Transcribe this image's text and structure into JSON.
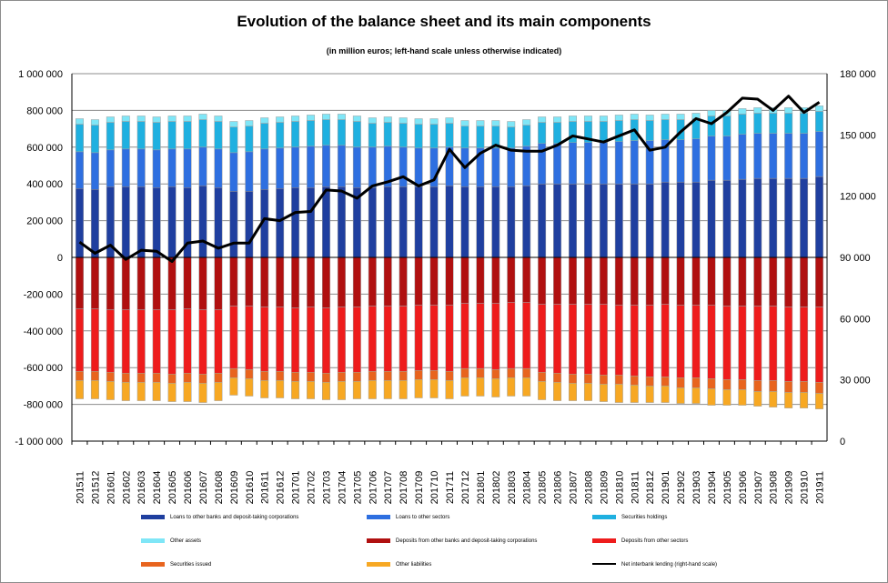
{
  "chart_data": {
    "type": "bar",
    "title": "Evolution of the balance sheet and its main components",
    "subtitle": "(in million euros; left-hand scale unless otherwise indicated)",
    "categories": [
      "201511",
      "201512",
      "201601",
      "201602",
      "201603",
      "201604",
      "201605",
      "201606",
      "201607",
      "201608",
      "201609",
      "201610",
      "201611",
      "201612",
      "201701",
      "201702",
      "201703",
      "201704",
      "201705",
      "201706",
      "201707",
      "201708",
      "201709",
      "201710",
      "201711",
      "201712",
      "201801",
      "201802",
      "201803",
      "201804",
      "201805",
      "201806",
      "201807",
      "201808",
      "201809",
      "201810",
      "201811",
      "201812",
      "201901",
      "201902",
      "201903",
      "201904",
      "201905",
      "201906",
      "201907",
      "201908",
      "201909",
      "201910",
      "201911"
    ],
    "ylim_left": [
      -1000000,
      1000000
    ],
    "ylim_right": [
      0,
      180000
    ],
    "left_ticks": [
      "-1 000 000",
      "-800 000",
      "-600 000",
      "-400 000",
      "-200 000",
      "0",
      "200 000",
      "400 000",
      "600 000",
      "800 000",
      "1 000 000"
    ],
    "right_ticks": [
      "0",
      "30 000",
      "60 000",
      "90 000",
      "120 000",
      "150 000",
      "180 000"
    ],
    "grid": true,
    "legend_position": "bottom",
    "series": [
      {
        "name": "Loans to other banks and deposit-taking corporations",
        "color": "#1f3f9f",
        "stack": "assets",
        "values": [
          375000,
          370000,
          385000,
          385000,
          385000,
          380000,
          385000,
          380000,
          390000,
          380000,
          360000,
          360000,
          370000,
          375000,
          380000,
          380000,
          385000,
          385000,
          380000,
          380000,
          385000,
          385000,
          385000,
          385000,
          390000,
          385000,
          385000,
          385000,
          385000,
          390000,
          400000,
          400000,
          400000,
          400000,
          400000,
          400000,
          400000,
          400000,
          410000,
          410000,
          410000,
          420000,
          420000,
          425000,
          430000,
          430000,
          430000,
          430000,
          440000
        ]
      },
      {
        "name": "Loans to other sectors",
        "color": "#2e6fe0",
        "stack": "assets",
        "values": [
          200000,
          200000,
          200000,
          205000,
          205000,
          205000,
          205000,
          210000,
          210000,
          210000,
          210000,
          215000,
          220000,
          220000,
          220000,
          225000,
          225000,
          225000,
          220000,
          220000,
          220000,
          215000,
          210000,
          210000,
          210000,
          210000,
          210000,
          210000,
          210000,
          215000,
          220000,
          220000,
          225000,
          225000,
          225000,
          230000,
          235000,
          235000,
          230000,
          230000,
          235000,
          240000,
          240000,
          245000,
          245000,
          245000,
          245000,
          245000,
          245000
        ]
      },
      {
        "name": "Securities holdings",
        "color": "#1fb0e0",
        "stack": "assets",
        "values": [
          150000,
          150000,
          150000,
          150000,
          150000,
          150000,
          150000,
          150000,
          150000,
          150000,
          140000,
          140000,
          140000,
          140000,
          140000,
          140000,
          140000,
          140000,
          140000,
          130000,
          130000,
          130000,
          130000,
          130000,
          130000,
          120000,
          120000,
          120000,
          115000,
          115000,
          115000,
          115000,
          115000,
          115000,
          115000,
          115000,
          115000,
          110000,
          110000,
          110000,
          110000,
          110000,
          110000,
          110000,
          110000,
          110000,
          110000,
          110000,
          110000
        ]
      },
      {
        "name": "Other assets",
        "color": "#7fe6f7",
        "stack": "assets",
        "values": [
          30000,
          30000,
          30000,
          30000,
          30000,
          30000,
          30000,
          30000,
          30000,
          30000,
          30000,
          30000,
          30000,
          30000,
          30000,
          30000,
          30000,
          30000,
          30000,
          30000,
          30000,
          30000,
          30000,
          30000,
          30000,
          30000,
          30000,
          30000,
          30000,
          30000,
          30000,
          30000,
          30000,
          30000,
          30000,
          30000,
          30000,
          30000,
          30000,
          30000,
          30000,
          30000,
          30000,
          30000,
          30000,
          30000,
          30000,
          30000,
          30000
        ]
      },
      {
        "name": "Deposits from other banks and deposit-taking corporations",
        "color": "#b01010",
        "stack": "liabilities",
        "values": [
          -280000,
          -280000,
          -285000,
          -285000,
          -285000,
          -285000,
          -285000,
          -280000,
          -285000,
          -285000,
          -265000,
          -265000,
          -270000,
          -270000,
          -275000,
          -270000,
          -275000,
          -270000,
          -270000,
          -265000,
          -265000,
          -265000,
          -260000,
          -260000,
          -260000,
          -250000,
          -250000,
          -250000,
          -245000,
          -245000,
          -255000,
          -255000,
          -255000,
          -255000,
          -255000,
          -260000,
          -260000,
          -260000,
          -255000,
          -260000,
          -260000,
          -260000,
          -265000,
          -265000,
          -265000,
          -265000,
          -270000,
          -270000,
          -270000
        ]
      },
      {
        "name": "Deposits from other sectors",
        "color": "#ee1c1c",
        "stack": "liabilities",
        "values": [
          -340000,
          -340000,
          -340000,
          -345000,
          -345000,
          -345000,
          -350000,
          -350000,
          -350000,
          -345000,
          -340000,
          -345000,
          -350000,
          -350000,
          -350000,
          -355000,
          -355000,
          -355000,
          -355000,
          -355000,
          -355000,
          -355000,
          -355000,
          -355000,
          -360000,
          -355000,
          -355000,
          -360000,
          -360000,
          -360000,
          -370000,
          -375000,
          -380000,
          -380000,
          -385000,
          -380000,
          -385000,
          -390000,
          -395000,
          -395000,
          -395000,
          -400000,
          -400000,
          -400000,
          -405000,
          -405000,
          -405000,
          -405000,
          -410000
        ]
      },
      {
        "name": "Securities issued",
        "color": "#e8641e",
        "stack": "liabilities",
        "values": [
          -50000,
          -50000,
          -50000,
          -50000,
          -50000,
          -50000,
          -50000,
          -50000,
          -50000,
          -50000,
          -50000,
          -50000,
          -50000,
          -50000,
          -50000,
          -50000,
          -50000,
          -50000,
          -50000,
          -50000,
          -50000,
          -50000,
          -50000,
          -50000,
          -50000,
          -50000,
          -50000,
          -50000,
          -50000,
          -50000,
          -50000,
          -50000,
          -50000,
          -50000,
          -50000,
          -50000,
          -50000,
          -50000,
          -50000,
          -55000,
          -55000,
          -55000,
          -55000,
          -55000,
          -60000,
          -60000,
          -60000,
          -60000,
          -60000
        ]
      },
      {
        "name": "Other liabilities",
        "color": "#f7a823",
        "stack": "liabilities",
        "values": [
          -100000,
          -100000,
          -100000,
          -100000,
          -100000,
          -100000,
          -100000,
          -105000,
          -105000,
          -100000,
          -95000,
          -95000,
          -95000,
          -95000,
          -95000,
          -95000,
          -95000,
          -100000,
          -95000,
          -100000,
          -100000,
          -100000,
          -100000,
          -100000,
          -100000,
          -100000,
          -100000,
          -100000,
          -100000,
          -100000,
          -100000,
          -100000,
          -95000,
          -95000,
          -95000,
          -100000,
          -95000,
          -90000,
          -90000,
          -85000,
          -85000,
          -90000,
          -85000,
          -85000,
          -80000,
          -85000,
          -85000,
          -85000,
          -85000
        ]
      },
      {
        "name": "Net interbank lending (right-hand scale)",
        "color": "#000000",
        "type": "line",
        "axis": "right",
        "values": [
          97500,
          92000,
          96000,
          89000,
          93500,
          93000,
          88000,
          97000,
          98000,
          94500,
          97000,
          97000,
          109000,
          108000,
          112000,
          112500,
          123000,
          122500,
          119000,
          125000,
          127000,
          129500,
          125000,
          128000,
          143000,
          134000,
          141000,
          145000,
          142500,
          142000,
          142000,
          145000,
          149500,
          148000,
          146500,
          149500,
          152500,
          142500,
          144000,
          151500,
          158000,
          155500,
          161000,
          168000,
          167500,
          162000,
          169000,
          161000,
          166000
        ]
      }
    ]
  }
}
